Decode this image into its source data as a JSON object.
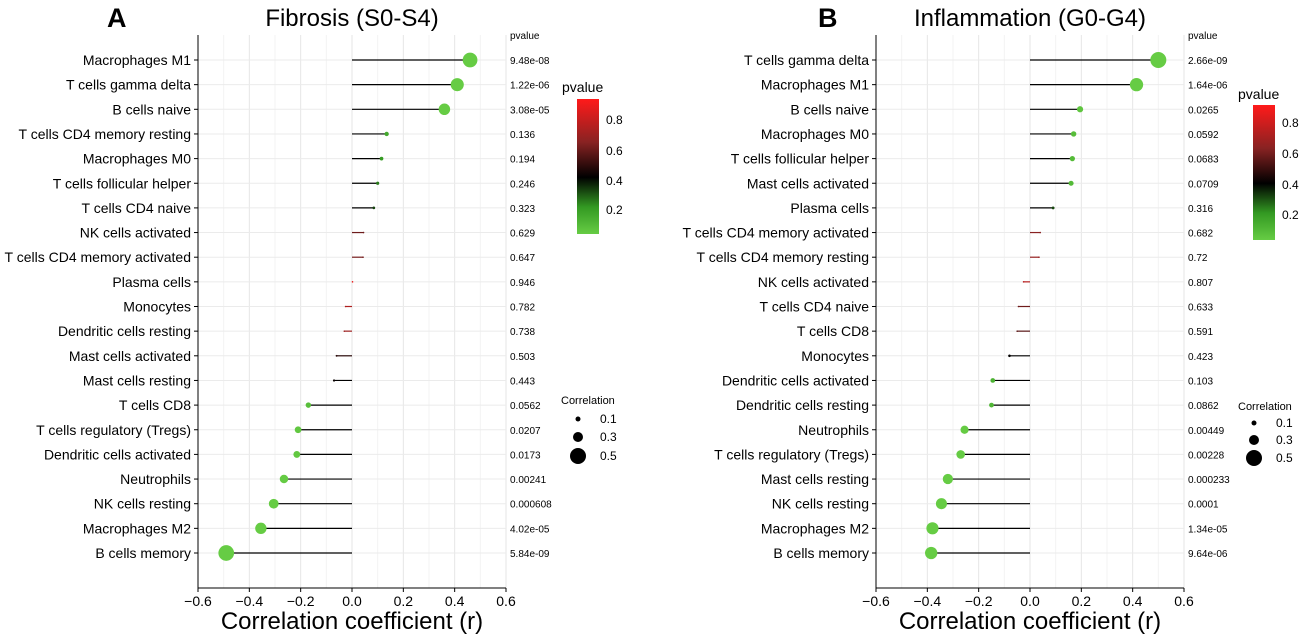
{
  "chart_data": [
    {
      "panel_label": "A",
      "type": "lollipop",
      "title": "Fibrosis (S0-S4)",
      "xlabel": "Correlation coefficient (r)",
      "xlim": [
        -0.6,
        0.6
      ],
      "xticks": [
        "−0.6",
        "−0.4",
        "−0.2",
        "0.0",
        "0.2",
        "0.4",
        "0.6"
      ],
      "pvalue_header": "pvalue",
      "categories": [
        "Macrophages M1",
        "T cells gamma delta",
        "B cells naive",
        "T cells CD4 memory resting",
        "Macrophages M0",
        "T cells follicular helper",
        "T cells CD4 naive",
        "NK cells activated",
        "T cells CD4 memory activated",
        "Plasma cells",
        "Monocytes",
        "Dendritic cells resting",
        "Mast cells activated",
        "Mast cells resting",
        "T cells CD8",
        "T cells regulatory (Tregs)",
        "Dendritic cells activated",
        "Neutrophils",
        "NK cells resting",
        "Macrophages M2",
        "B cells memory"
      ],
      "values": [
        0.46,
        0.41,
        0.36,
        0.135,
        0.115,
        0.1,
        0.085,
        0.045,
        0.043,
        0.002,
        -0.025,
        -0.03,
        -0.06,
        -0.07,
        -0.17,
        -0.21,
        -0.215,
        -0.265,
        -0.305,
        -0.355,
        -0.49
      ],
      "pvalue_labels": [
        "9.48e-08",
        "1.22e-06",
        "3.08e-05",
        "0.136",
        "0.194",
        "0.246",
        "0.323",
        "0.629",
        "0.647",
        "0.946",
        "0.782",
        "0.738",
        "0.503",
        "0.443",
        "0.0562",
        "0.0207",
        "0.0173",
        "0.00241",
        "0.000608",
        "4.02e-05",
        "5.84e-09"
      ],
      "pvalues": [
        9.48e-08,
        1.22e-06,
        3.08e-05,
        0.136,
        0.194,
        0.246,
        0.323,
        0.629,
        0.647,
        0.946,
        0.782,
        0.738,
        0.503,
        0.443,
        0.0562,
        0.0207,
        0.0173,
        0.00241,
        0.000608,
        4.02e-05,
        5.84e-09
      ],
      "color_legend": {
        "title": "pvalue",
        "ticks": [
          "0.8",
          "0.6",
          "0.4",
          "0.2"
        ]
      },
      "size_legend": {
        "title": "Correlation",
        "labels": [
          "0.1",
          "0.3",
          "0.5"
        ]
      }
    },
    {
      "panel_label": "B",
      "type": "lollipop",
      "title": "Inflammation (G0-G4)",
      "xlabel": "Correlation coefficient (r)",
      "xlim": [
        -0.6,
        0.6
      ],
      "xticks": [
        "−0.6",
        "−0.4",
        "−0.2",
        "0.0",
        "0.2",
        "0.4",
        "0.6"
      ],
      "pvalue_header": "pvalue",
      "categories": [
        "T cells gamma delta",
        "Macrophages M1",
        "B cells naive",
        "Macrophages M0",
        "T cells follicular helper",
        "Mast cells activated",
        "Plasma cells",
        "T cells CD4 memory activated",
        "T cells CD4 memory resting",
        "NK cells activated",
        "T cells CD4 naive",
        "T cells CD8",
        "Monocytes",
        "Dendritic cells activated",
        "Dendritic cells resting",
        "Neutrophils",
        "T cells regulatory (Tregs)",
        "Mast cells resting",
        "NK cells resting",
        "Macrophages M2",
        "B cells memory"
      ],
      "values": [
        0.5,
        0.415,
        0.195,
        0.17,
        0.165,
        0.16,
        0.09,
        0.04,
        0.035,
        -0.025,
        -0.045,
        -0.05,
        -0.08,
        -0.145,
        -0.15,
        -0.255,
        -0.27,
        -0.32,
        -0.345,
        -0.38,
        -0.385
      ],
      "pvalue_labels": [
        "2.66e-09",
        "1.64e-06",
        "0.0265",
        "0.0592",
        "0.0683",
        "0.0709",
        "0.316",
        "0.682",
        "0.72",
        "0.807",
        "0.633",
        "0.591",
        "0.423",
        "0.103",
        "0.0862",
        "0.00449",
        "0.00228",
        "0.000233",
        "0.0001",
        "1.34e-05",
        "9.64e-06"
      ],
      "pvalues": [
        2.66e-09,
        1.64e-06,
        0.0265,
        0.0592,
        0.0683,
        0.0709,
        0.316,
        0.682,
        0.72,
        0.807,
        0.633,
        0.591,
        0.423,
        0.103,
        0.0862,
        0.00449,
        0.00228,
        0.000233,
        0.0001,
        1.34e-05,
        9.64e-06
      ],
      "color_legend": {
        "title": "pvalue",
        "ticks": [
          "0.8",
          "0.6",
          "0.4",
          "0.2"
        ]
      },
      "size_legend": {
        "title": "Correlation",
        "labels": [
          "0.1",
          "0.3",
          "0.5"
        ]
      }
    }
  ]
}
